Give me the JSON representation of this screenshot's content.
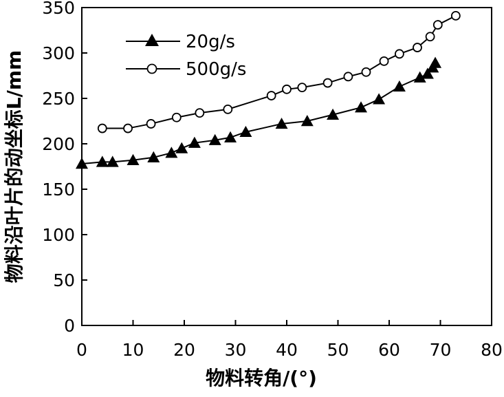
{
  "chart_data": {
    "type": "line",
    "title": "",
    "xlabel": "物料转角/(°)",
    "ylabel": "物料沿叶片的动坐标L/mm",
    "xlim": [
      0,
      80
    ],
    "ylim": [
      0,
      350
    ],
    "xticks": [
      0,
      10,
      20,
      30,
      40,
      50,
      60,
      70,
      80
    ],
    "yticks": [
      0,
      50,
      100,
      150,
      200,
      250,
      300,
      350
    ],
    "grid": false,
    "legend_position": "top-left",
    "series": [
      {
        "name": "20g/s",
        "marker": "filled-triangle",
        "color": "#000000",
        "x": [
          0,
          4,
          6,
          10,
          14,
          17.5,
          19.5,
          22,
          26,
          29,
          32,
          39,
          44,
          49,
          54.5,
          58,
          62,
          66,
          67.5,
          68.5,
          69
        ],
        "y": [
          178,
          180,
          180,
          182,
          185,
          190,
          195,
          201,
          204,
          207,
          213,
          222,
          225,
          232,
          240,
          249,
          263,
          273,
          277,
          284,
          289
        ]
      },
      {
        "name": "500g/s",
        "marker": "open-circle",
        "color": "#000000",
        "x": [
          4,
          9,
          13.5,
          18.5,
          23,
          28.5,
          37,
          40,
          43,
          48,
          52,
          55.5,
          59,
          62,
          65.5,
          68,
          69.5,
          73
        ],
        "y": [
          217,
          217,
          222,
          229,
          234,
          238,
          253,
          260,
          262,
          267,
          274,
          279,
          291,
          299,
          306,
          318,
          331,
          341
        ]
      }
    ]
  }
}
